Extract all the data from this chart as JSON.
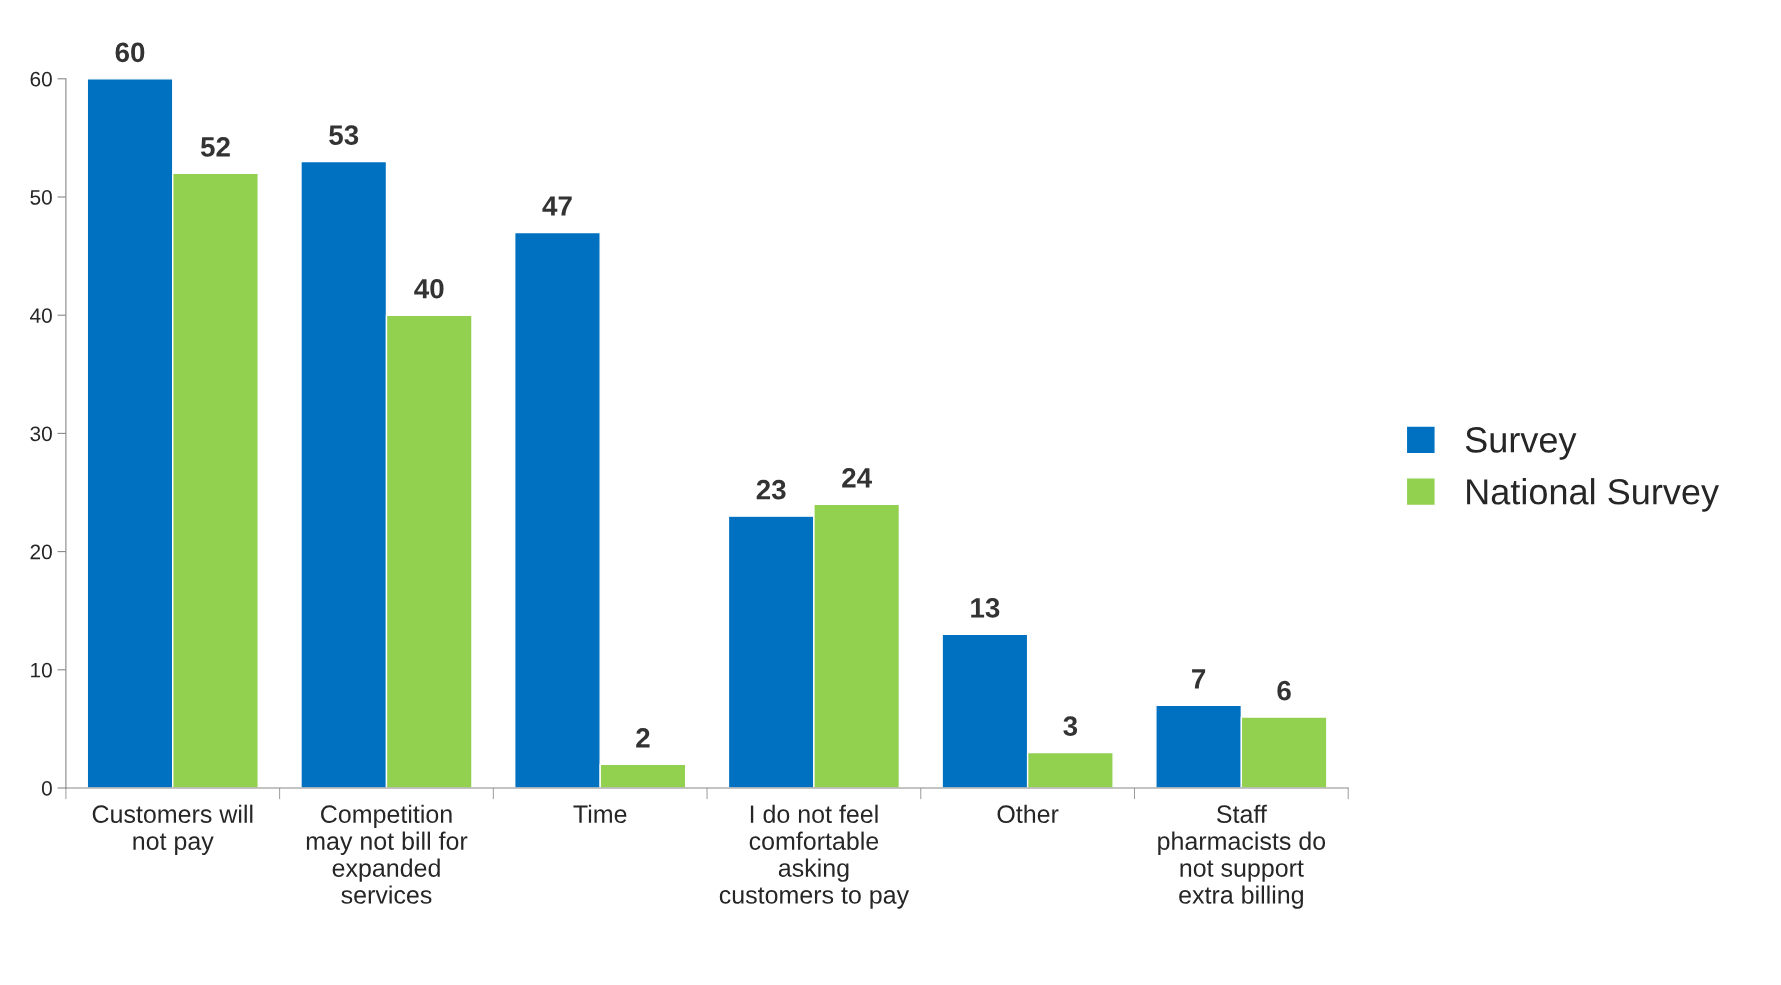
{
  "chart_data": {
    "type": "bar",
    "categories": [
      "Customers will\nnot pay",
      "Competition\nmay not bill for\nexpanded\nservices",
      "Time",
      "I do not feel\ncomfortable\nasking\ncustomers to pay",
      "Other",
      "Staff\npharmacists do\nnot support\nextra billing"
    ],
    "series": [
      {
        "name": "Survey",
        "color": "#0070c0",
        "values": [
          60,
          53,
          47,
          23,
          13,
          7
        ]
      },
      {
        "name": "National Survey",
        "color": "#92d050",
        "values": [
          52,
          40,
          2,
          24,
          3,
          6
        ]
      }
    ],
    "ylim": [
      0,
      60
    ],
    "yticks": [
      0,
      10,
      20,
      30,
      40,
      50,
      60
    ],
    "data_labels": true,
    "grid": false,
    "legend": "right"
  }
}
